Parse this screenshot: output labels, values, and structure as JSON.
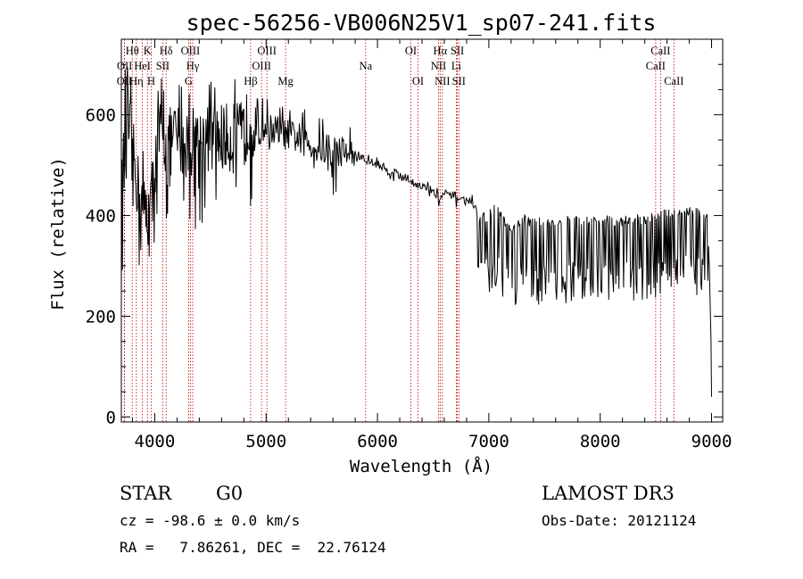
{
  "chart_data": {
    "type": "line",
    "title": "spec-56256-VB006N25V1_sp07-241.fits",
    "xlabel": "Wavelength (Å)",
    "ylabel": "Flux (relative)",
    "xlim": [
      3700,
      9100
    ],
    "ylim": [
      -10,
      750
    ],
    "xticks": [
      4000,
      5000,
      6000,
      7000,
      8000,
      9000
    ],
    "yticks": [
      0,
      200,
      400,
      600
    ],
    "grid": false,
    "spectrum_keypoints": [
      [
        3700,
        320
      ],
      [
        3710,
        480
      ],
      [
        3730,
        560
      ],
      [
        3760,
        600
      ],
      [
        3800,
        540
      ],
      [
        3850,
        470
      ],
      [
        3900,
        430
      ],
      [
        3950,
        400
      ],
      [
        4000,
        520
      ],
      [
        4050,
        580
      ],
      [
        4100,
        560
      ],
      [
        4150,
        560
      ],
      [
        4200,
        570
      ],
      [
        4250,
        560
      ],
      [
        4300,
        550
      ],
      [
        4350,
        565
      ],
      [
        4400,
        560
      ],
      [
        4450,
        570
      ],
      [
        4500,
        565
      ],
      [
        4600,
        570
      ],
      [
        4700,
        565
      ],
      [
        4800,
        575
      ],
      [
        4860,
        610
      ],
      [
        4900,
        580
      ],
      [
        5000,
        580
      ],
      [
        5100,
        575
      ],
      [
        5200,
        565
      ],
      [
        5300,
        560
      ],
      [
        5400,
        550
      ],
      [
        5500,
        540
      ],
      [
        5600,
        520
      ],
      [
        5700,
        540
      ],
      [
        5800,
        525
      ],
      [
        5900,
        510
      ],
      [
        6000,
        505
      ],
      [
        6100,
        490
      ],
      [
        6200,
        485
      ],
      [
        6300,
        470
      ],
      [
        6400,
        460
      ],
      [
        6500,
        450
      ],
      [
        6560,
        435
      ],
      [
        6600,
        445
      ],
      [
        6700,
        440
      ],
      [
        6800,
        430
      ],
      [
        6850,
        435
      ],
      [
        6900,
        390
      ],
      [
        7000,
        395
      ],
      [
        7050,
        410
      ],
      [
        7100,
        400
      ],
      [
        7200,
        360
      ],
      [
        7300,
        390
      ],
      [
        7400,
        380
      ],
      [
        7500,
        385
      ],
      [
        7600,
        380
      ],
      [
        7700,
        385
      ],
      [
        7800,
        390
      ],
      [
        7900,
        385
      ],
      [
        8000,
        390
      ],
      [
        8100,
        385
      ],
      [
        8200,
        385
      ],
      [
        8300,
        390
      ],
      [
        8400,
        385
      ],
      [
        8500,
        395
      ],
      [
        8600,
        400
      ],
      [
        8700,
        400
      ],
      [
        8800,
        405
      ],
      [
        8900,
        400
      ],
      [
        8960,
        395
      ],
      [
        8980,
        300
      ],
      [
        8995,
        150
      ],
      [
        9000,
        40
      ]
    ],
    "absorption_bands": {
      "region_a": {
        "x_range": [
          3700,
          4950
        ],
        "amplitude": 200,
        "step": 10
      },
      "region_b": {
        "x_range": [
          4950,
          5800
        ],
        "amplitude": 90,
        "step": 12
      },
      "region_c": {
        "x_range": [
          5800,
          6880
        ],
        "amplitude": 25,
        "step": 15
      },
      "region_d": {
        "x_range": [
          6880,
          8980
        ],
        "amplitude": 160,
        "step": 14
      }
    },
    "spectral_lines": [
      {
        "label": "OII",
        "wavelength": 3727,
        "row": 3
      },
      {
        "label": "OII",
        "wavelength": 3729,
        "row": 2
      },
      {
        "label": "Hθ",
        "wavelength": 3798,
        "row": 1
      },
      {
        "label": "Hη",
        "wavelength": 3835,
        "row": 3
      },
      {
        "label": "HeI",
        "wavelength": 3889,
        "row": 2
      },
      {
        "label": "K",
        "wavelength": 3934,
        "row": 1
      },
      {
        "label": "H",
        "wavelength": 3969,
        "row": 3
      },
      {
        "label": "SII",
        "wavelength": 4072,
        "row": 2
      },
      {
        "label": "Hδ",
        "wavelength": 4102,
        "row": 1
      },
      {
        "label": "OIII",
        "wavelength": 4320,
        "row": 1
      },
      {
        "label": "Hγ",
        "wavelength": 4341,
        "row": 2
      },
      {
        "label": "G",
        "wavelength": 4304,
        "row": 3
      },
      {
        "label": "Hβ",
        "wavelength": 4861,
        "row": 3
      },
      {
        "label": "OIII",
        "wavelength": 4959,
        "row": 2
      },
      {
        "label": "OIII",
        "wavelength": 5007,
        "row": 1
      },
      {
        "label": "Mg",
        "wavelength": 5175,
        "row": 3
      },
      {
        "label": "Na",
        "wavelength": 5894,
        "row": 2
      },
      {
        "label": "OI",
        "wavelength": 6300,
        "row": 1
      },
      {
        "label": "OI",
        "wavelength": 6364,
        "row": 3
      },
      {
        "label": "Hα",
        "wavelength": 6563,
        "row": 1
      },
      {
        "label": "NII",
        "wavelength": 6548,
        "row": 2
      },
      {
        "label": "NII",
        "wavelength": 6583,
        "row": 3
      },
      {
        "label": "SII",
        "wavelength": 6717,
        "row": 1
      },
      {
        "label": "Li",
        "wavelength": 6708,
        "row": 2
      },
      {
        "label": "SII",
        "wavelength": 6731,
        "row": 3
      },
      {
        "label": "CaII",
        "wavelength": 8498,
        "row": 2
      },
      {
        "label": "CaII",
        "wavelength": 8542,
        "row": 1
      },
      {
        "label": "CaII",
        "wavelength": 8662,
        "row": 3
      }
    ],
    "annotations": {
      "class": "STAR",
      "subclass": "G0",
      "survey": "LAMOST DR3",
      "cz": "cz = -98.6 ± 0.0 km/s",
      "obs_date": "Obs-Date: 20121124",
      "radec": "RA =   7.86261, DEC =  22.76124"
    }
  },
  "colors": {
    "spectrum": "#000000",
    "line_marker": "#c00000",
    "axis": "#000000"
  }
}
